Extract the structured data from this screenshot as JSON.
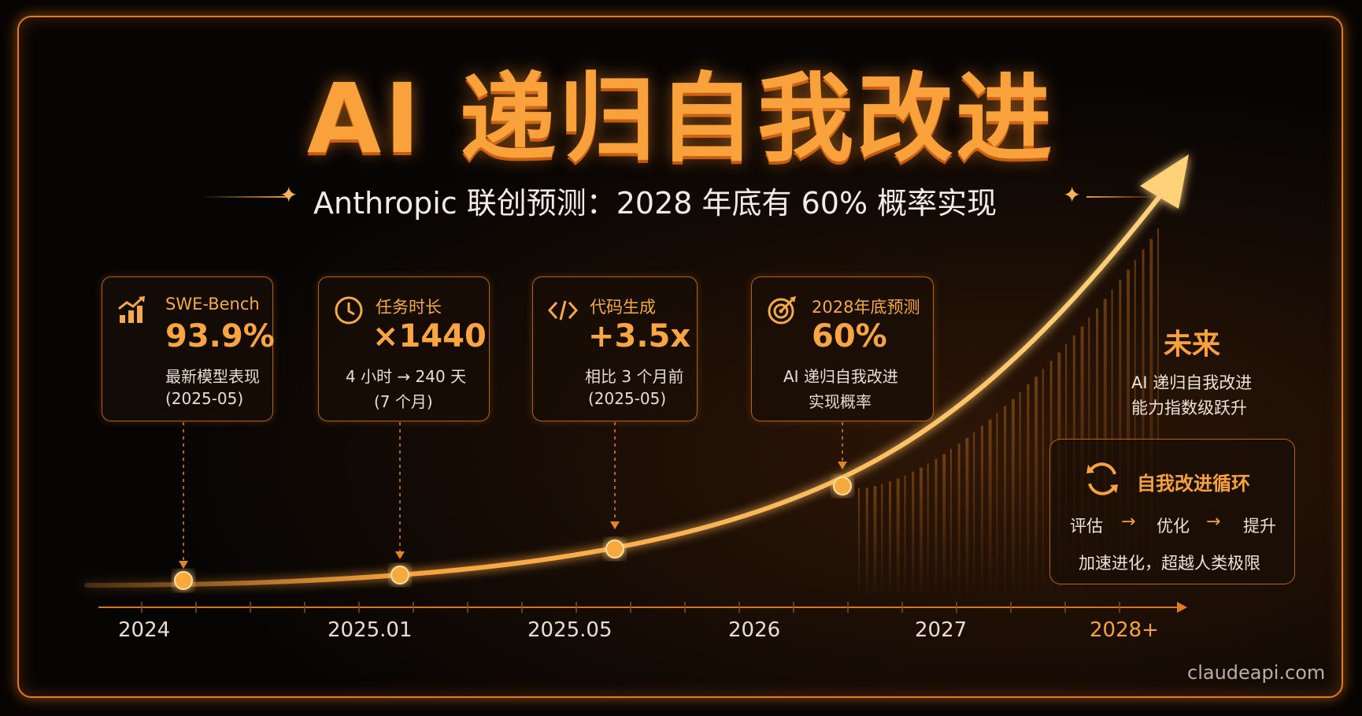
{
  "title": "AI 递归自我改进",
  "subtitle": "Anthropic 联创预测：2028 年底有 60% 概率实现",
  "cards": [
    {
      "icon": "bar-chart-up-icon",
      "label": "SWE-Bench",
      "value": "93.9%",
      "line1": "最新模型表现",
      "line2": "(2025-05)"
    },
    {
      "icon": "clock-icon",
      "label": "任务时长",
      "value": "×1440",
      "line1": "4 小时 → 240 天",
      "line2": "(7 个月)"
    },
    {
      "icon": "code-icon",
      "label": "代码生成",
      "value": "+3.5x",
      "line1": "相比 3 个月前",
      "line2": "(2025-05)"
    },
    {
      "icon": "target-icon",
      "label": "2028年底预测",
      "value": "60%",
      "line1": "AI 递归自我改进",
      "line2": "实现概率"
    }
  ],
  "future": {
    "title": "未来",
    "line1": "AI 递归自我改进",
    "line2": "能力指数级跃升"
  },
  "cycle": {
    "icon": "cycle-arrows-icon",
    "title": "自我改进循环",
    "steps": [
      "评估",
      "优化",
      "提升"
    ],
    "arrow": "→",
    "footer": "加速进化，超越人类极限"
  },
  "timeline": {
    "ticks": [
      "2024",
      "2025.01",
      "2025.05",
      "2026",
      "2027",
      "2028+"
    ]
  },
  "colors": {
    "accent": "#f7a23e",
    "border": "#e27a22",
    "background": "#060403"
  },
  "watermark": "claudeapi.com"
}
